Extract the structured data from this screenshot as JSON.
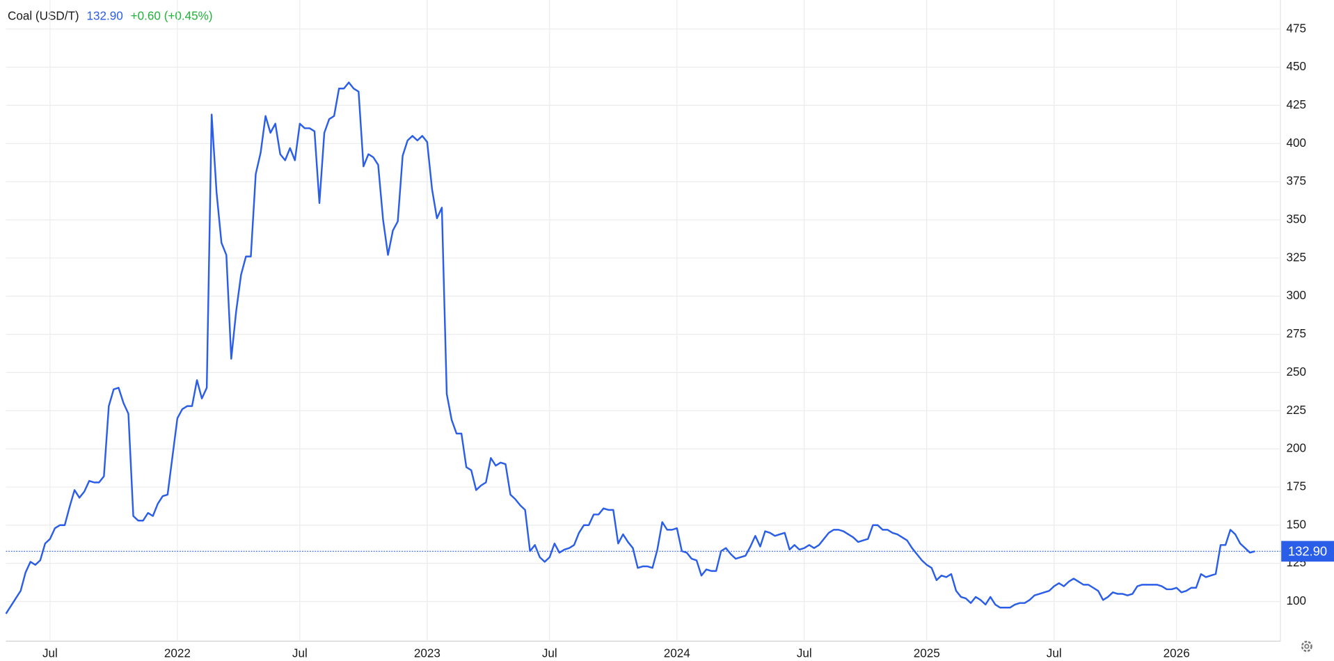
{
  "chart_data": {
    "type": "line",
    "title": "Coal (USD/T)",
    "change": "+0.60 (+0.45%)",
    "current": {
      "value": 132.9,
      "label": "132.90"
    },
    "color": "#2a5ee8",
    "grid": true,
    "ylim": [
      74,
      494
    ],
    "yticks": [
      100,
      125,
      150,
      175,
      200,
      225,
      250,
      275,
      300,
      325,
      350,
      375,
      400,
      425,
      450,
      475
    ],
    "categories": [
      null,
      null,
      null,
      null,
      null,
      null,
      null,
      null,
      null,
      "Jul",
      null,
      null,
      null,
      null,
      null,
      null,
      null,
      null,
      null,
      null,
      null,
      null,
      null,
      null,
      null,
      null,
      null,
      null,
      null,
      null,
      null,
      null,
      null,
      null,
      null,
      "2022",
      null,
      null,
      null,
      null,
      null,
      null,
      null,
      null,
      null,
      null,
      null,
      null,
      null,
      null,
      null,
      null,
      null,
      null,
      null,
      null,
      null,
      null,
      null,
      null,
      "Jul",
      null,
      null,
      null,
      null,
      null,
      null,
      null,
      null,
      null,
      null,
      null,
      null,
      null,
      null,
      null,
      null,
      null,
      null,
      null,
      null,
      null,
      null,
      null,
      null,
      null,
      "2023",
      null,
      null,
      null,
      null,
      null,
      null,
      null,
      null,
      null,
      null,
      null,
      null,
      null,
      null,
      null,
      null,
      null,
      null,
      null,
      null,
      null,
      null,
      null,
      null,
      "Jul",
      null,
      null,
      null,
      null,
      null,
      null,
      null,
      null,
      null,
      null,
      null,
      null,
      null,
      null,
      null,
      null,
      null,
      null,
      null,
      null,
      null,
      null,
      null,
      null,
      null,
      "2024",
      null,
      null,
      null,
      null,
      null,
      null,
      null,
      null,
      null,
      null,
      null,
      null,
      null,
      null,
      null,
      null,
      null,
      null,
      null,
      null,
      null,
      null,
      null,
      null,
      null,
      "Jul",
      null,
      null,
      null,
      null,
      null,
      null,
      null,
      null,
      null,
      null,
      null,
      null,
      null,
      null,
      null,
      null,
      null,
      null,
      null,
      null,
      null,
      null,
      null,
      null,
      "2025",
      null,
      null,
      null,
      null,
      null,
      null,
      null,
      null,
      null,
      null,
      null,
      null,
      null,
      null,
      null,
      null,
      null,
      null,
      null,
      null,
      null,
      null,
      null,
      null,
      null,
      "Jul",
      null,
      null,
      null,
      null,
      null,
      null,
      null,
      null,
      null,
      null,
      null,
      null,
      null,
      null,
      null,
      null,
      null,
      null,
      null,
      null,
      null,
      null,
      null,
      null,
      "2026",
      null,
      null,
      null,
      null,
      null,
      null,
      null,
      null,
      null,
      null,
      null,
      null,
      null,
      null,
      null,
      null
    ],
    "values": [
      92,
      97,
      102,
      107,
      119,
      126,
      124,
      127,
      138,
      141,
      148,
      150,
      150,
      162,
      173,
      168,
      172,
      179,
      178,
      178,
      182,
      228,
      239,
      240,
      230,
      223,
      156,
      153,
      153,
      158,
      156,
      164,
      169,
      170,
      195,
      220,
      226,
      228,
      228,
      245,
      233,
      240,
      419,
      368,
      335,
      327,
      259,
      290,
      314,
      326,
      326,
      380,
      394,
      418,
      407,
      413,
      393,
      389,
      397,
      389,
      413,
      410,
      410,
      408,
      361,
      407,
      416,
      418,
      436,
      436,
      440,
      436,
      434,
      385,
      393,
      391,
      386,
      350,
      327,
      343,
      349,
      392,
      402,
      405,
      402,
      405,
      401,
      370,
      351,
      358,
      236,
      219,
      210,
      210,
      188,
      186,
      173,
      176,
      178,
      194,
      189,
      191,
      190,
      170,
      167,
      163,
      160,
      133,
      137,
      129,
      126,
      129,
      138,
      132,
      134,
      135,
      137,
      145,
      150,
      150,
      157,
      157,
      161,
      160,
      160,
      138,
      144,
      139,
      135,
      122,
      123,
      123,
      122,
      134,
      152,
      147,
      147,
      148,
      133,
      132,
      128,
      127,
      117,
      121,
      120,
      120,
      133,
      135,
      131,
      128,
      129,
      130,
      136,
      143,
      136,
      146,
      145,
      143,
      144,
      145,
      134,
      137,
      134,
      135,
      137,
      135,
      137,
      141,
      145,
      147,
      147,
      146,
      144,
      142,
      139,
      140,
      141,
      150,
      150,
      147,
      147,
      145,
      144,
      142,
      140,
      135,
      131,
      127,
      124,
      122,
      114,
      117,
      116,
      118,
      107,
      103,
      102,
      99,
      103,
      101,
      98,
      103,
      98,
      96,
      96,
      96,
      98,
      99,
      99,
      101,
      104,
      105,
      106,
      107,
      110,
      112,
      110,
      113,
      115,
      113,
      111,
      111,
      109,
      107,
      101,
      103,
      106,
      105,
      105,
      104,
      105,
      110,
      111,
      111,
      111,
      111,
      110,
      108,
      108,
      109,
      106,
      107,
      109,
      109,
      118,
      116,
      117,
      118,
      137,
      137,
      147,
      144,
      138,
      135,
      132,
      132.9
    ]
  }
}
